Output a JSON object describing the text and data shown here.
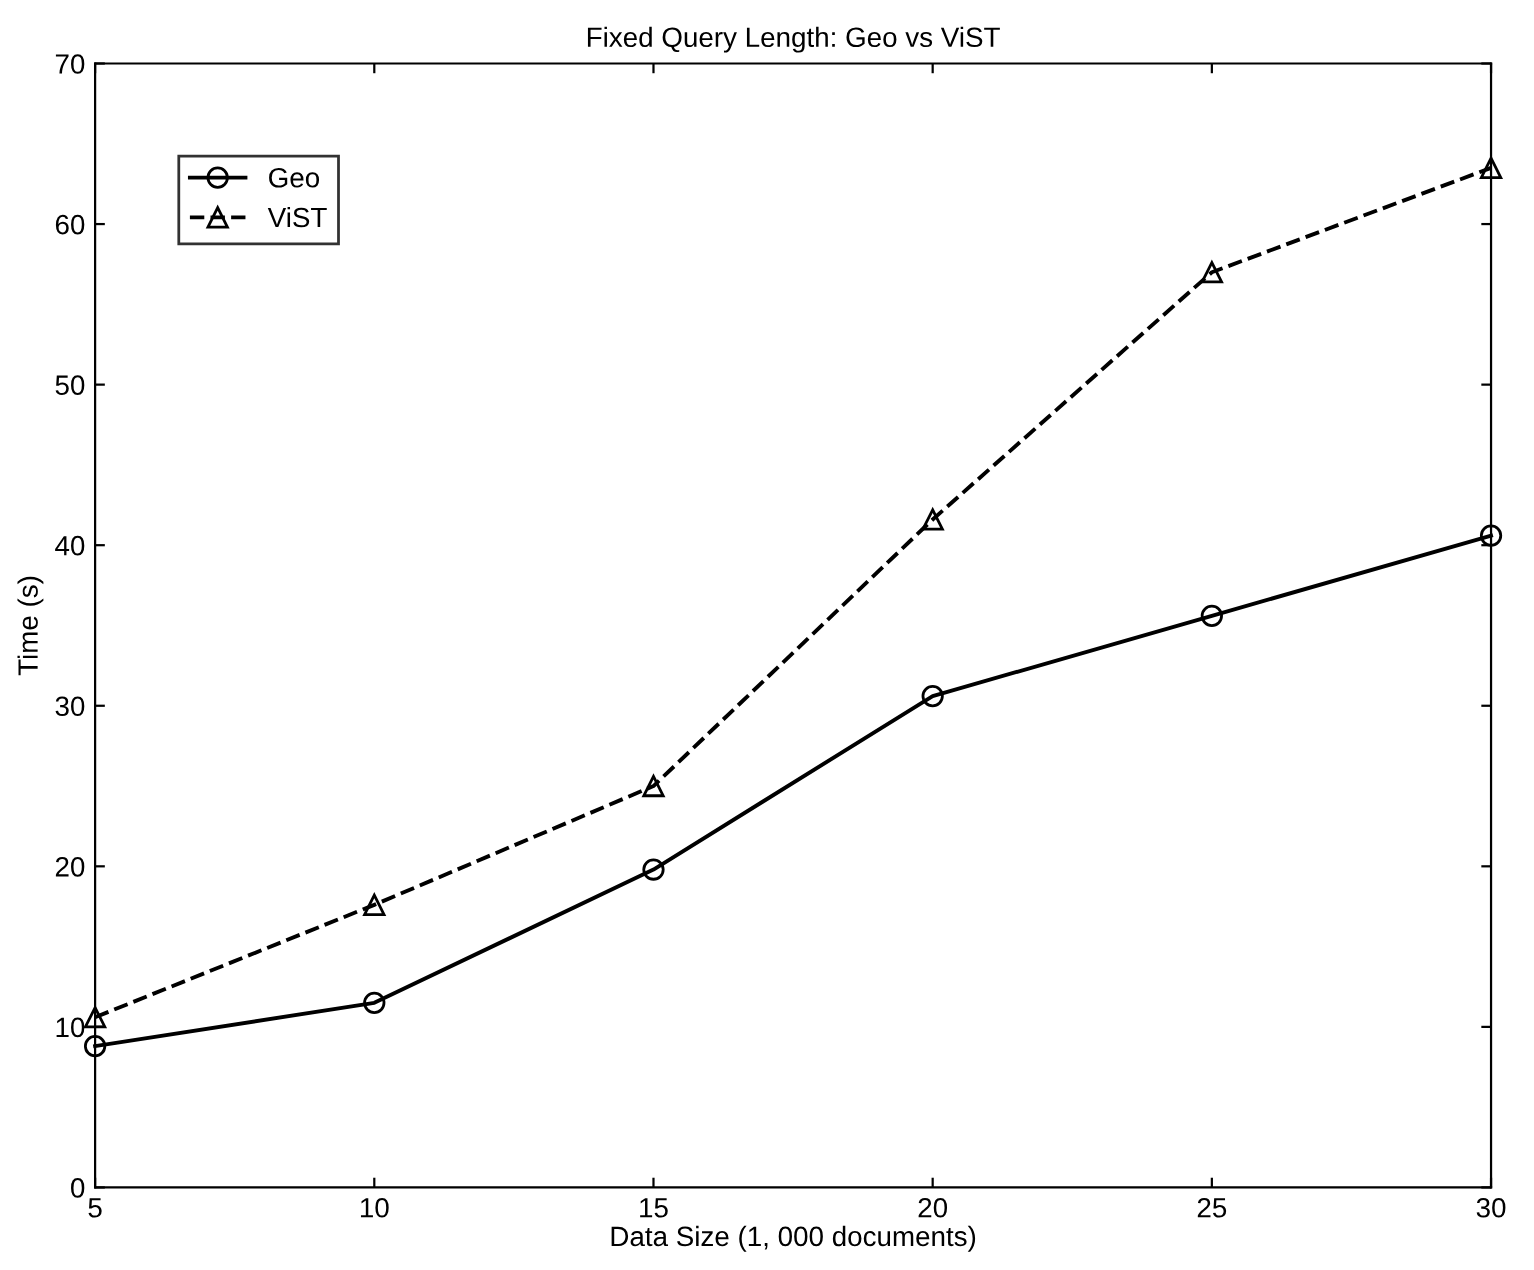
{
  "chart_data": {
    "type": "line",
    "title": "Fixed Query Length: Geo vs ViST",
    "xlabel": "Data Size (1, 000 documents)",
    "ylabel": "Time (s)",
    "x": [
      5,
      10,
      15,
      20,
      25,
      30
    ],
    "series": [
      {
        "name": "Geo",
        "color": "#000000",
        "marker": "circle",
        "line_style": "solid",
        "values": [
          8.8,
          11.5,
          19.8,
          30.6,
          35.6,
          40.6
        ]
      },
      {
        "name": "ViST",
        "color": "#000000",
        "marker": "triangle",
        "line_style": "dashed",
        "values": [
          10.6,
          17.6,
          25.0,
          41.6,
          57.0,
          63.5
        ]
      }
    ],
    "xlim": [
      5,
      30
    ],
    "xticks": [
      5,
      10,
      15,
      20,
      25,
      30
    ],
    "ylim": [
      0,
      70
    ],
    "yticks": [
      0,
      10,
      20,
      30,
      40,
      50,
      60,
      70
    ],
    "grid": false,
    "legend": "top left"
  }
}
